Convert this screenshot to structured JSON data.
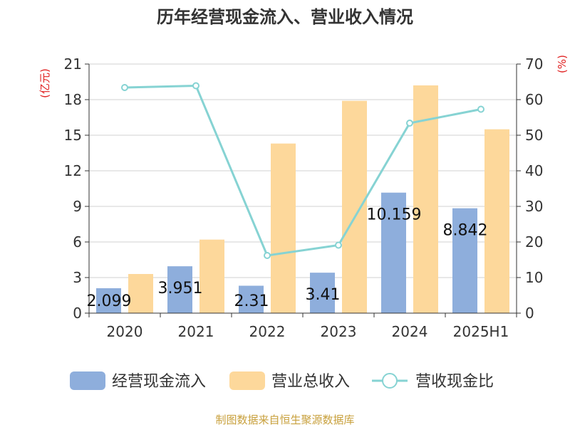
{
  "chart_data": {
    "type": "bar",
    "title": "历年经营现金流入、营业收入情况",
    "categories": [
      "2020",
      "2021",
      "2022",
      "2023",
      "2024",
      "2025H1"
    ],
    "y_left": {
      "unit": "(亿元)",
      "ticks": [
        "0",
        "3",
        "6",
        "9",
        "12",
        "15",
        "18",
        "21"
      ],
      "ylim": [
        0,
        21
      ]
    },
    "y_right": {
      "unit": "(%)",
      "ticks": [
        "0",
        "10",
        "20",
        "30",
        "40",
        "50",
        "60",
        "70"
      ],
      "ylim": [
        0,
        70
      ]
    },
    "series": [
      {
        "name": "经营现金流入",
        "type": "bar",
        "axis": "left",
        "values": [
          2.099,
          3.951,
          2.31,
          3.41,
          10.159,
          8.842
        ],
        "labels": [
          "2.099",
          "3.951",
          "2.31",
          "3.41",
          "10.159",
          "8.842"
        ]
      },
      {
        "name": "营业总收入",
        "type": "bar",
        "axis": "left",
        "values": [
          3.3,
          6.2,
          14.3,
          17.9,
          19.2,
          15.5
        ]
      },
      {
        "name": "营收现金比",
        "type": "line",
        "axis": "right",
        "values": [
          63.4,
          63.9,
          16.2,
          19.1,
          53.4,
          57.3
        ]
      }
    ],
    "legend_position": "bottom",
    "grid": true,
    "source": "制图数据来自恒生聚源数据库"
  },
  "colors": {
    "cash_inflow": "#8eaedc",
    "revenue": "#fdd89b",
    "ratio_line": "#86d3d3",
    "unit_text": "#e02020",
    "source_text": "#c8a03c",
    "grid": "#d0d0d0",
    "axis": "#333333"
  }
}
